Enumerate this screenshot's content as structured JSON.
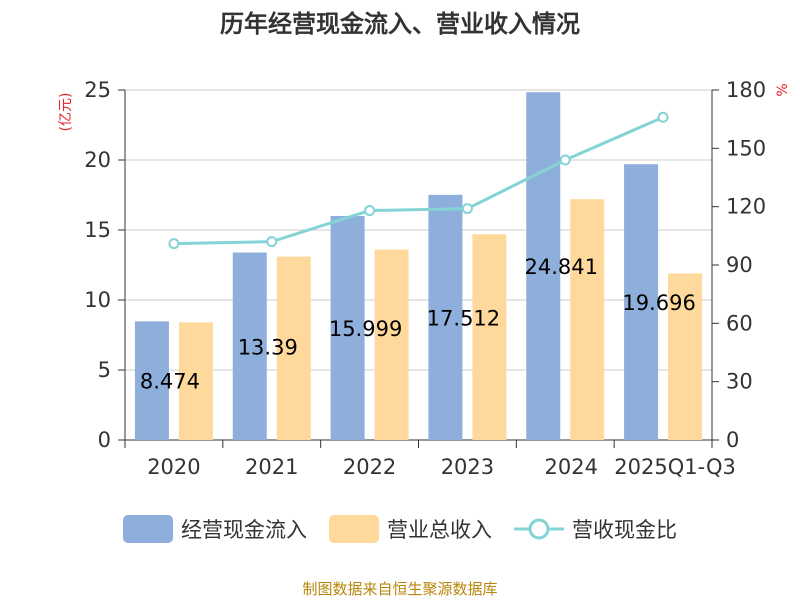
{
  "chart_data": {
    "type": "bar",
    "title": "历年经营现金流入、营业收入情况",
    "categories": [
      "2020",
      "2021",
      "2022",
      "2023",
      "2024",
      "2025Q1-Q3"
    ],
    "series": [
      {
        "name": "经营现金流入",
        "type": "bar",
        "axis": "left",
        "color": "#8eaedb",
        "values": [
          8.474,
          13.39,
          15.999,
          17.512,
          24.841,
          19.696
        ]
      },
      {
        "name": "营业总收入",
        "type": "bar",
        "axis": "left",
        "color": "#ffd99b",
        "values": [
          8.4,
          13.1,
          13.6,
          14.7,
          17.2,
          11.9
        ]
      },
      {
        "name": "营收现金比",
        "type": "line",
        "axis": "right",
        "color": "#84d4d6",
        "values": [
          101,
          102,
          118,
          119,
          144,
          166
        ]
      }
    ],
    "data_labels": [
      "8.474",
      "13.39",
      "15.999",
      "17.512",
      "24.841",
      "19.696"
    ],
    "y_left": {
      "label": "(亿元)",
      "min": 0,
      "max": 25,
      "ticks": [
        0,
        5,
        10,
        15,
        20,
        25
      ]
    },
    "y_right": {
      "label": "%",
      "min": 0,
      "max": 180,
      "ticks": [
        0,
        30,
        60,
        90,
        120,
        150,
        180
      ]
    },
    "grid": true,
    "legend_position": "bottom"
  },
  "source_text": "制图数据来自恒生聚源数据库"
}
